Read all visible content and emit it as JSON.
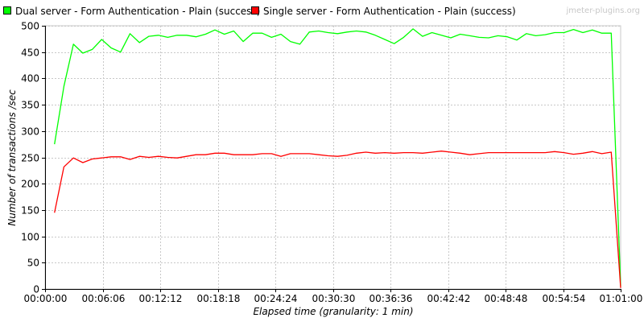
{
  "chart_data": {
    "type": "line",
    "watermark": "jmeter-plugins.org",
    "xlabel": "Elapsed time (granularity: 1 min)",
    "ylabel": "Number of transactions /sec",
    "ylim": [
      0,
      500
    ],
    "yticks": [
      0,
      50,
      100,
      150,
      200,
      250,
      300,
      350,
      400,
      450,
      500
    ],
    "xlim_seconds": [
      0,
      3660
    ],
    "xticks": [
      "00:00:00",
      "00:06:06",
      "00:12:12",
      "00:18:18",
      "00:24:24",
      "00:30:30",
      "00:36:36",
      "00:42:42",
      "00:48:48",
      "00:54:54",
      "01:01:00"
    ],
    "grid": true,
    "legend_position": "top-left",
    "x_minutes": [
      1,
      2,
      3,
      4,
      5,
      6,
      7,
      8,
      9,
      10,
      11,
      12,
      13,
      14,
      15,
      16,
      17,
      18,
      19,
      20,
      21,
      22,
      23,
      24,
      25,
      26,
      27,
      28,
      29,
      30,
      31,
      32,
      33,
      34,
      35,
      36,
      37,
      38,
      39,
      40,
      41,
      42,
      43,
      44,
      45,
      46,
      47,
      48,
      49,
      50,
      51,
      52,
      53,
      54,
      55,
      56,
      57,
      58,
      59,
      60,
      61
    ],
    "series": [
      {
        "name": "Dual server - Form Authentication - Plain (success)",
        "color": "#00ff00",
        "values": [
          275,
          385,
          465,
          448,
          455,
          474,
          458,
          450,
          485,
          468,
          480,
          482,
          478,
          482,
          482,
          479,
          484,
          492,
          484,
          490,
          470,
          486,
          486,
          478,
          484,
          470,
          465,
          488,
          490,
          487,
          485,
          488,
          490,
          488,
          482,
          474,
          466,
          478,
          494,
          480,
          487,
          482,
          477,
          484,
          481,
          478,
          477,
          481,
          479,
          473,
          485,
          481,
          483,
          487,
          487,
          493,
          487,
          492,
          486,
          486,
          5
        ]
      },
      {
        "name": "Single server - Form Authentication - Plain (success)",
        "color": "#ff0000",
        "values": [
          145,
          232,
          249,
          240,
          247,
          249,
          251,
          251,
          246,
          252,
          250,
          252,
          250,
          249,
          252,
          255,
          255,
          258,
          258,
          255,
          255,
          255,
          257,
          257,
          252,
          257,
          257,
          257,
          255,
          253,
          252,
          254,
          258,
          260,
          258,
          259,
          258,
          259,
          259,
          258,
          260,
          262,
          260,
          258,
          255,
          257,
          259,
          259,
          259,
          259,
          259,
          259,
          259,
          261,
          259,
          256,
          258,
          261,
          257,
          260,
          2
        ]
      }
    ]
  }
}
